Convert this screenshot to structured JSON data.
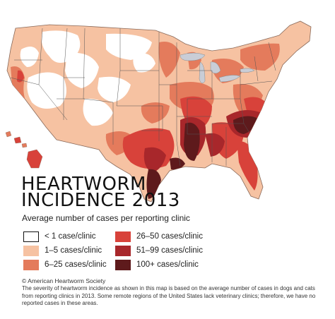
{
  "title_line1": "HEARTWORM",
  "title_line2": "INCIDENCE 2013",
  "subtitle": "Average number of cases per reporting clinic",
  "legend": [
    {
      "label": "< 1 case/clinic",
      "color": "#ffffff"
    },
    {
      "label": "1–5 cases/clinic",
      "color": "#f6c2a2"
    },
    {
      "label": "6–25 cases/clinic",
      "color": "#e47b5c"
    },
    {
      "label": "26–50 cases/clinic",
      "color": "#d8423a"
    },
    {
      "label": "51–99 cases/clinic",
      "color": "#a8272b"
    },
    {
      "label": "100+ cases/clinic",
      "color": "#5e1a1c"
    }
  ],
  "colors": {
    "none": "#ffffff",
    "low": "#f6c2a2",
    "moderate": "#e47b5c",
    "elevated": "#d8423a",
    "high": "#a8272b",
    "very_high": "#5e1a1c",
    "lake": "#c9cdd6",
    "border": "#555555"
  },
  "copyright": "© American Heartworm Society",
  "note": "The severity of heartworm incidence as shown in this map is based on the average number of cases in dogs and cats from reporting clinics in 2013. Some remote regions of the United States lack veterinary clinics; therefore, we have no reported cases in these areas."
}
